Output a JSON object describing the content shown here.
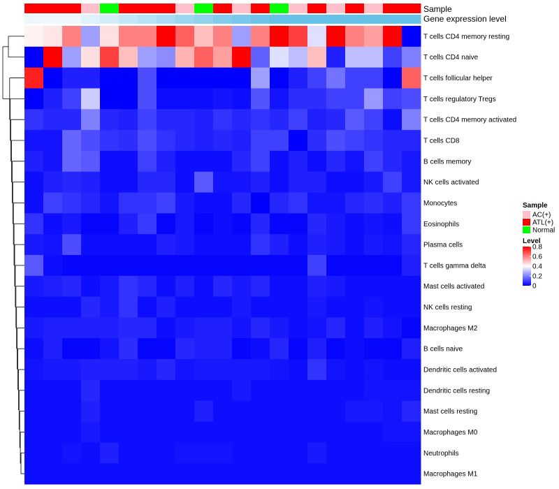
{
  "chart_data": {
    "type": "heatmap",
    "annotation_rows": [
      "Sample",
      "Gene expression level"
    ],
    "sample_groups": [
      "ATL(+)",
      "ATL(+)",
      "ATL(+)",
      "AC(+)",
      "Normal",
      "ATL(+)",
      "ATL(+)",
      "ATL(+)",
      "AC(+)",
      "Normal",
      "ATL(+)",
      "AC(+)",
      "ATL(+)",
      "Normal",
      "AC(+)",
      "ATL(+)",
      "AC(+)",
      "ATL(+)",
      "AC(+)",
      "ATL(+)",
      "ATL(+)"
    ],
    "expression_level_colors": [
      "#edf7fc",
      "#edf7fc",
      "#edf7fc",
      "#dff1fa",
      "#d2ecf8",
      "#c4e6f6",
      "#b7e1f4",
      "#aadbf2",
      "#9dd6f0",
      "#90d1ee",
      "#83cbec",
      "#79c7ea",
      "#6fc3e8",
      "#66c0e7",
      "#66c0e7",
      "#66c0e7",
      "#66c0e7",
      "#66c0e7",
      "#66c0e7",
      "#66c0e7",
      "#66c0e7"
    ],
    "rows": [
      "T cells CD4 memory resting",
      "T cells CD4 naive",
      "T cells follicular helper",
      "T cells regulatory  Tregs",
      "T cells CD4 memory activated",
      "T cells CD8",
      "B cells memory",
      "NK cells activated",
      "Monocytes",
      "Eosinophils",
      "Plasma cells",
      "T cells gamma delta",
      "Mast cells activated",
      "NK cells resting",
      "Macrophages M2",
      "B cells naive",
      "Dendritic cells activated",
      "Dendritic cells resting",
      "Mast cells resting",
      "Macrophages M0",
      "Neutrophils",
      "Macrophages M1"
    ],
    "values": [
      [
        0.42,
        0.44,
        0.6,
        0.25,
        0.45,
        0.6,
        0.6,
        0.8,
        0.65,
        0.5,
        0.6,
        0.25,
        0.6,
        0.8,
        0.7,
        0.35,
        0.8,
        0.6,
        0.55,
        0.8,
        0.0
      ],
      [
        0.0,
        0.8,
        0.25,
        0.45,
        0.7,
        0.5,
        0.25,
        0.22,
        0.52,
        0.65,
        0.55,
        0.8,
        0.15,
        0.35,
        0.3,
        0.5,
        0.05,
        0.3,
        0.3,
        0.1,
        0.2
      ],
      [
        0.75,
        0.0,
        0.05,
        0.05,
        0.0,
        0.0,
        0.12,
        0.0,
        0.0,
        0.0,
        0.0,
        0.0,
        0.25,
        0.0,
        0.05,
        0.1,
        0.18,
        0.1,
        0.1,
        0.0,
        0.65
      ],
      [
        0.0,
        0.05,
        0.1,
        0.32,
        0.0,
        0.0,
        0.12,
        0.02,
        0.02,
        0.02,
        0.03,
        0.02,
        0.13,
        0.03,
        0.07,
        0.07,
        0.1,
        0.1,
        0.24,
        0.1,
        0.12
      ],
      [
        0.08,
        0.06,
        0.06,
        0.2,
        0.06,
        0.05,
        0.1,
        0.06,
        0.06,
        0.05,
        0.08,
        0.06,
        0.08,
        0.06,
        0.1,
        0.05,
        0.06,
        0.14,
        0.1,
        0.02,
        0.2
      ],
      [
        0.03,
        0.03,
        0.16,
        0.12,
        0.08,
        0.07,
        0.12,
        0.08,
        0.06,
        0.05,
        0.06,
        0.05,
        0.1,
        0.1,
        0.0,
        0.07,
        0.12,
        0.1,
        0.08,
        0.06,
        0.06
      ],
      [
        0.05,
        0.03,
        0.16,
        0.14,
        0.02,
        0.02,
        0.1,
        0.05,
        0.02,
        0.02,
        0.02,
        0.06,
        0.1,
        0.02,
        0.05,
        0.02,
        0.06,
        0.03,
        0.1,
        0.06,
        0.04
      ],
      [
        0.02,
        0.05,
        0.06,
        0.05,
        0.02,
        0.02,
        0.06,
        0.06,
        0.02,
        0.14,
        0.03,
        0.03,
        0.05,
        0.02,
        0.05,
        0.05,
        0.02,
        0.02,
        0.04,
        0.1,
        0.04
      ],
      [
        0.02,
        0.1,
        0.08,
        0.06,
        0.03,
        0.08,
        0.08,
        0.1,
        0.04,
        0.02,
        0.02,
        0.06,
        0.0,
        0.06,
        0.08,
        0.03,
        0.03,
        0.06,
        0.07,
        0.05,
        0.09
      ],
      [
        0.08,
        0.02,
        0.04,
        0.01,
        0.01,
        0.05,
        0.09,
        0.01,
        0.04,
        0.01,
        0.02,
        0.01,
        0.06,
        0.01,
        0.01,
        0.06,
        0.04,
        0.02,
        0.03,
        0.02,
        0.09
      ],
      [
        0.04,
        0.03,
        0.12,
        0.02,
        0.02,
        0.02,
        0.02,
        0.05,
        0.04,
        0.02,
        0.02,
        0.02,
        0.08,
        0.05,
        0.02,
        0.05,
        0.04,
        0.02,
        0.04,
        0.03,
        0.06
      ],
      [
        0.14,
        0.02,
        0.01,
        0.01,
        0.01,
        0.01,
        0.01,
        0.01,
        0.01,
        0.01,
        0.01,
        0.01,
        0.01,
        0.01,
        0.01,
        0.1,
        0.01,
        0.01,
        0.01,
        0.01,
        0.05
      ],
      [
        0.04,
        0.05,
        0.06,
        0.02,
        0.04,
        0.08,
        0.06,
        0.02,
        0.05,
        0.02,
        0.06,
        0.04,
        0.06,
        0.02,
        0.02,
        0.05,
        0.04,
        0.02,
        0.02,
        0.02,
        0.02
      ],
      [
        0.02,
        0.02,
        0.02,
        0.06,
        0.04,
        0.08,
        0.02,
        0.05,
        0.02,
        0.02,
        0.02,
        0.04,
        0.02,
        0.02,
        0.02,
        0.04,
        0.02,
        0.02,
        0.03,
        0.02,
        0.02
      ],
      [
        0.04,
        0.05,
        0.05,
        0.05,
        0.05,
        0.06,
        0.06,
        0.02,
        0.04,
        0.05,
        0.05,
        0.03,
        0.06,
        0.04,
        0.02,
        0.03,
        0.06,
        0.02,
        0.05,
        0.03,
        0.01
      ],
      [
        0.02,
        0.05,
        0.01,
        0.01,
        0.03,
        0.07,
        0.01,
        0.01,
        0.06,
        0.05,
        0.05,
        0.01,
        0.02,
        0.06,
        0.01,
        0.05,
        0.01,
        0.02,
        0.01,
        0.01,
        0.05
      ],
      [
        0.03,
        0.04,
        0.04,
        0.05,
        0.05,
        0.05,
        0.04,
        0.06,
        0.03,
        0.04,
        0.04,
        0.04,
        0.04,
        0.03,
        0.02,
        0.08,
        0.03,
        0.02,
        0.03,
        0.02,
        0.02
      ],
      [
        0.02,
        0.02,
        0.02,
        0.06,
        0.02,
        0.02,
        0.02,
        0.02,
        0.02,
        0.02,
        0.02,
        0.04,
        0.02,
        0.02,
        0.02,
        0.02,
        0.02,
        0.02,
        0.03,
        0.03,
        0.03
      ],
      [
        0.02,
        0.02,
        0.02,
        0.05,
        0.02,
        0.02,
        0.02,
        0.02,
        0.02,
        0.05,
        0.02,
        0.02,
        0.02,
        0.02,
        0.02,
        0.02,
        0.02,
        0.04,
        0.04,
        0.03,
        0.06
      ],
      [
        0.02,
        0.02,
        0.02,
        0.04,
        0.02,
        0.02,
        0.02,
        0.02,
        0.02,
        0.02,
        0.02,
        0.02,
        0.02,
        0.02,
        0.02,
        0.02,
        0.02,
        0.02,
        0.02,
        0.03,
        0.03
      ],
      [
        0.02,
        0.02,
        0.03,
        0.02,
        0.05,
        0.02,
        0.02,
        0.02,
        0.03,
        0.03,
        0.03,
        0.02,
        0.02,
        0.02,
        0.02,
        0.04,
        0.02,
        0.02,
        0.02,
        0.02,
        0.02
      ],
      [
        0.02,
        0.02,
        0.02,
        0.02,
        0.02,
        0.02,
        0.02,
        0.02,
        0.02,
        0.02,
        0.02,
        0.02,
        0.02,
        0.02,
        0.02,
        0.02,
        0.02,
        0.02,
        0.02,
        0.02,
        0.02
      ]
    ],
    "sample_legend": {
      "title": "Sample",
      "items": [
        {
          "label": "AC(+)",
          "color": "#ffc0cb"
        },
        {
          "label": "ATL(+)",
          "color": "#ff0000"
        },
        {
          "label": "Normal",
          "color": "#00ff00"
        }
      ]
    },
    "level_legend": {
      "title": "Level",
      "ticks": [
        "0.8",
        "0.6",
        "0.4",
        "0.2",
        "0"
      ],
      "tick_values": [
        0.8,
        0.6,
        0.4,
        0.2,
        0
      ],
      "range": [
        0,
        0.8
      ]
    },
    "color_scale": {
      "low": "#0000ff",
      "mid": "#ffffff",
      "high": "#ff0000",
      "mid_value": 0.4
    },
    "group_colors": {
      "AC(+)": "#ffc0cb",
      "ATL(+)": "#ff0000",
      "Normal": "#00ff00"
    },
    "dendrogram": "rows"
  }
}
